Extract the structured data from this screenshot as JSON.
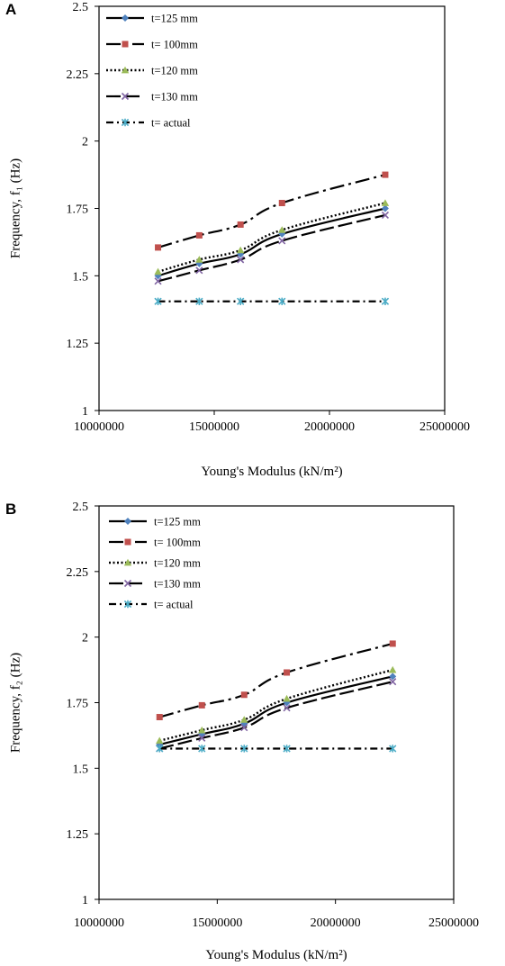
{
  "chart_data": [
    {
      "panel": "A",
      "type": "line",
      "xlabel": "Young's Modulus (kN/m²)",
      "ylabel": "Frequency, f₁ (Hz)",
      "xlim": [
        10000000,
        25000000
      ],
      "ylim": [
        1,
        2.5
      ],
      "xticks": [
        10000000,
        15000000,
        20000000,
        25000000
      ],
      "xtick_labels": [
        "10000000",
        "15000000",
        "20000000",
        "25000000"
      ],
      "yticks": [
        1,
        1.25,
        1.5,
        1.75,
        2,
        2.25,
        2.5
      ],
      "ytick_labels": [
        "1",
        "1.25",
        "1.5",
        "1.75",
        "2",
        "2.25",
        "2.5"
      ],
      "grid": false,
      "legend_position": "top-left",
      "x": [
        12560000,
        14350000,
        16140000,
        17940000,
        22420000
      ],
      "series": [
        {
          "name": "t=125 mm",
          "values": [
            1.5,
            1.545,
            1.58,
            1.655,
            1.75
          ],
          "color": "#4f81bd",
          "marker": "diamond",
          "dash": "solid"
        },
        {
          "name": "t= 100mm",
          "values": [
            1.605,
            1.65,
            1.69,
            1.77,
            1.875
          ],
          "color": "#c0504d",
          "marker": "square",
          "dash": "longdash-dot"
        },
        {
          "name": "t=120 mm",
          "values": [
            1.515,
            1.56,
            1.595,
            1.67,
            1.77
          ],
          "color": "#9bbb59",
          "marker": "triangle",
          "dash": "dotted"
        },
        {
          "name": "t=130 mm",
          "values": [
            1.48,
            1.52,
            1.56,
            1.63,
            1.725
          ],
          "color": "#8064a2",
          "marker": "x",
          "dash": "longdash"
        },
        {
          "name": "t= actual",
          "values": [
            1.405,
            1.405,
            1.405,
            1.405,
            1.405
          ],
          "color": "#4bacc6",
          "marker": "star",
          "dash": "dashdot"
        }
      ]
    },
    {
      "panel": "B",
      "type": "line",
      "xlabel": "Young's Modulus (kN/m²)",
      "ylabel": "Frequency, f₂ (Hz)",
      "xlim": [
        10000000,
        25000000
      ],
      "ylim": [
        1,
        2.5
      ],
      "xticks": [
        10000000,
        15000000,
        20000000,
        25000000
      ],
      "xtick_labels": [
        "10000000",
        "15000000",
        "20000000",
        "25000000"
      ],
      "yticks": [
        1,
        1.25,
        1.5,
        1.75,
        2,
        2.25,
        2.5
      ],
      "ytick_labels": [
        "1",
        "1.25",
        "1.5",
        "1.75",
        "2",
        "2.25",
        "2.5"
      ],
      "grid": false,
      "legend_position": "top-left",
      "x": [
        12560000,
        14350000,
        16140000,
        17940000,
        22420000
      ],
      "series": [
        {
          "name": "t=125 mm",
          "values": [
            1.59,
            1.63,
            1.67,
            1.75,
            1.85
          ],
          "color": "#4f81bd",
          "marker": "diamond",
          "dash": "solid"
        },
        {
          "name": "t= 100mm",
          "values": [
            1.695,
            1.74,
            1.78,
            1.865,
            1.975
          ],
          "color": "#c0504d",
          "marker": "square",
          "dash": "longdash-dot"
        },
        {
          "name": "t=120 mm",
          "values": [
            1.605,
            1.645,
            1.685,
            1.765,
            1.875
          ],
          "color": "#9bbb59",
          "marker": "triangle",
          "dash": "dotted"
        },
        {
          "name": "t=130 mm",
          "values": [
            1.575,
            1.615,
            1.655,
            1.73,
            1.83
          ],
          "color": "#8064a2",
          "marker": "x",
          "dash": "longdash"
        },
        {
          "name": "t= actual",
          "values": [
            1.575,
            1.575,
            1.575,
            1.575,
            1.575
          ],
          "color": "#4bacc6",
          "marker": "star",
          "dash": "dashdot"
        }
      ]
    }
  ]
}
